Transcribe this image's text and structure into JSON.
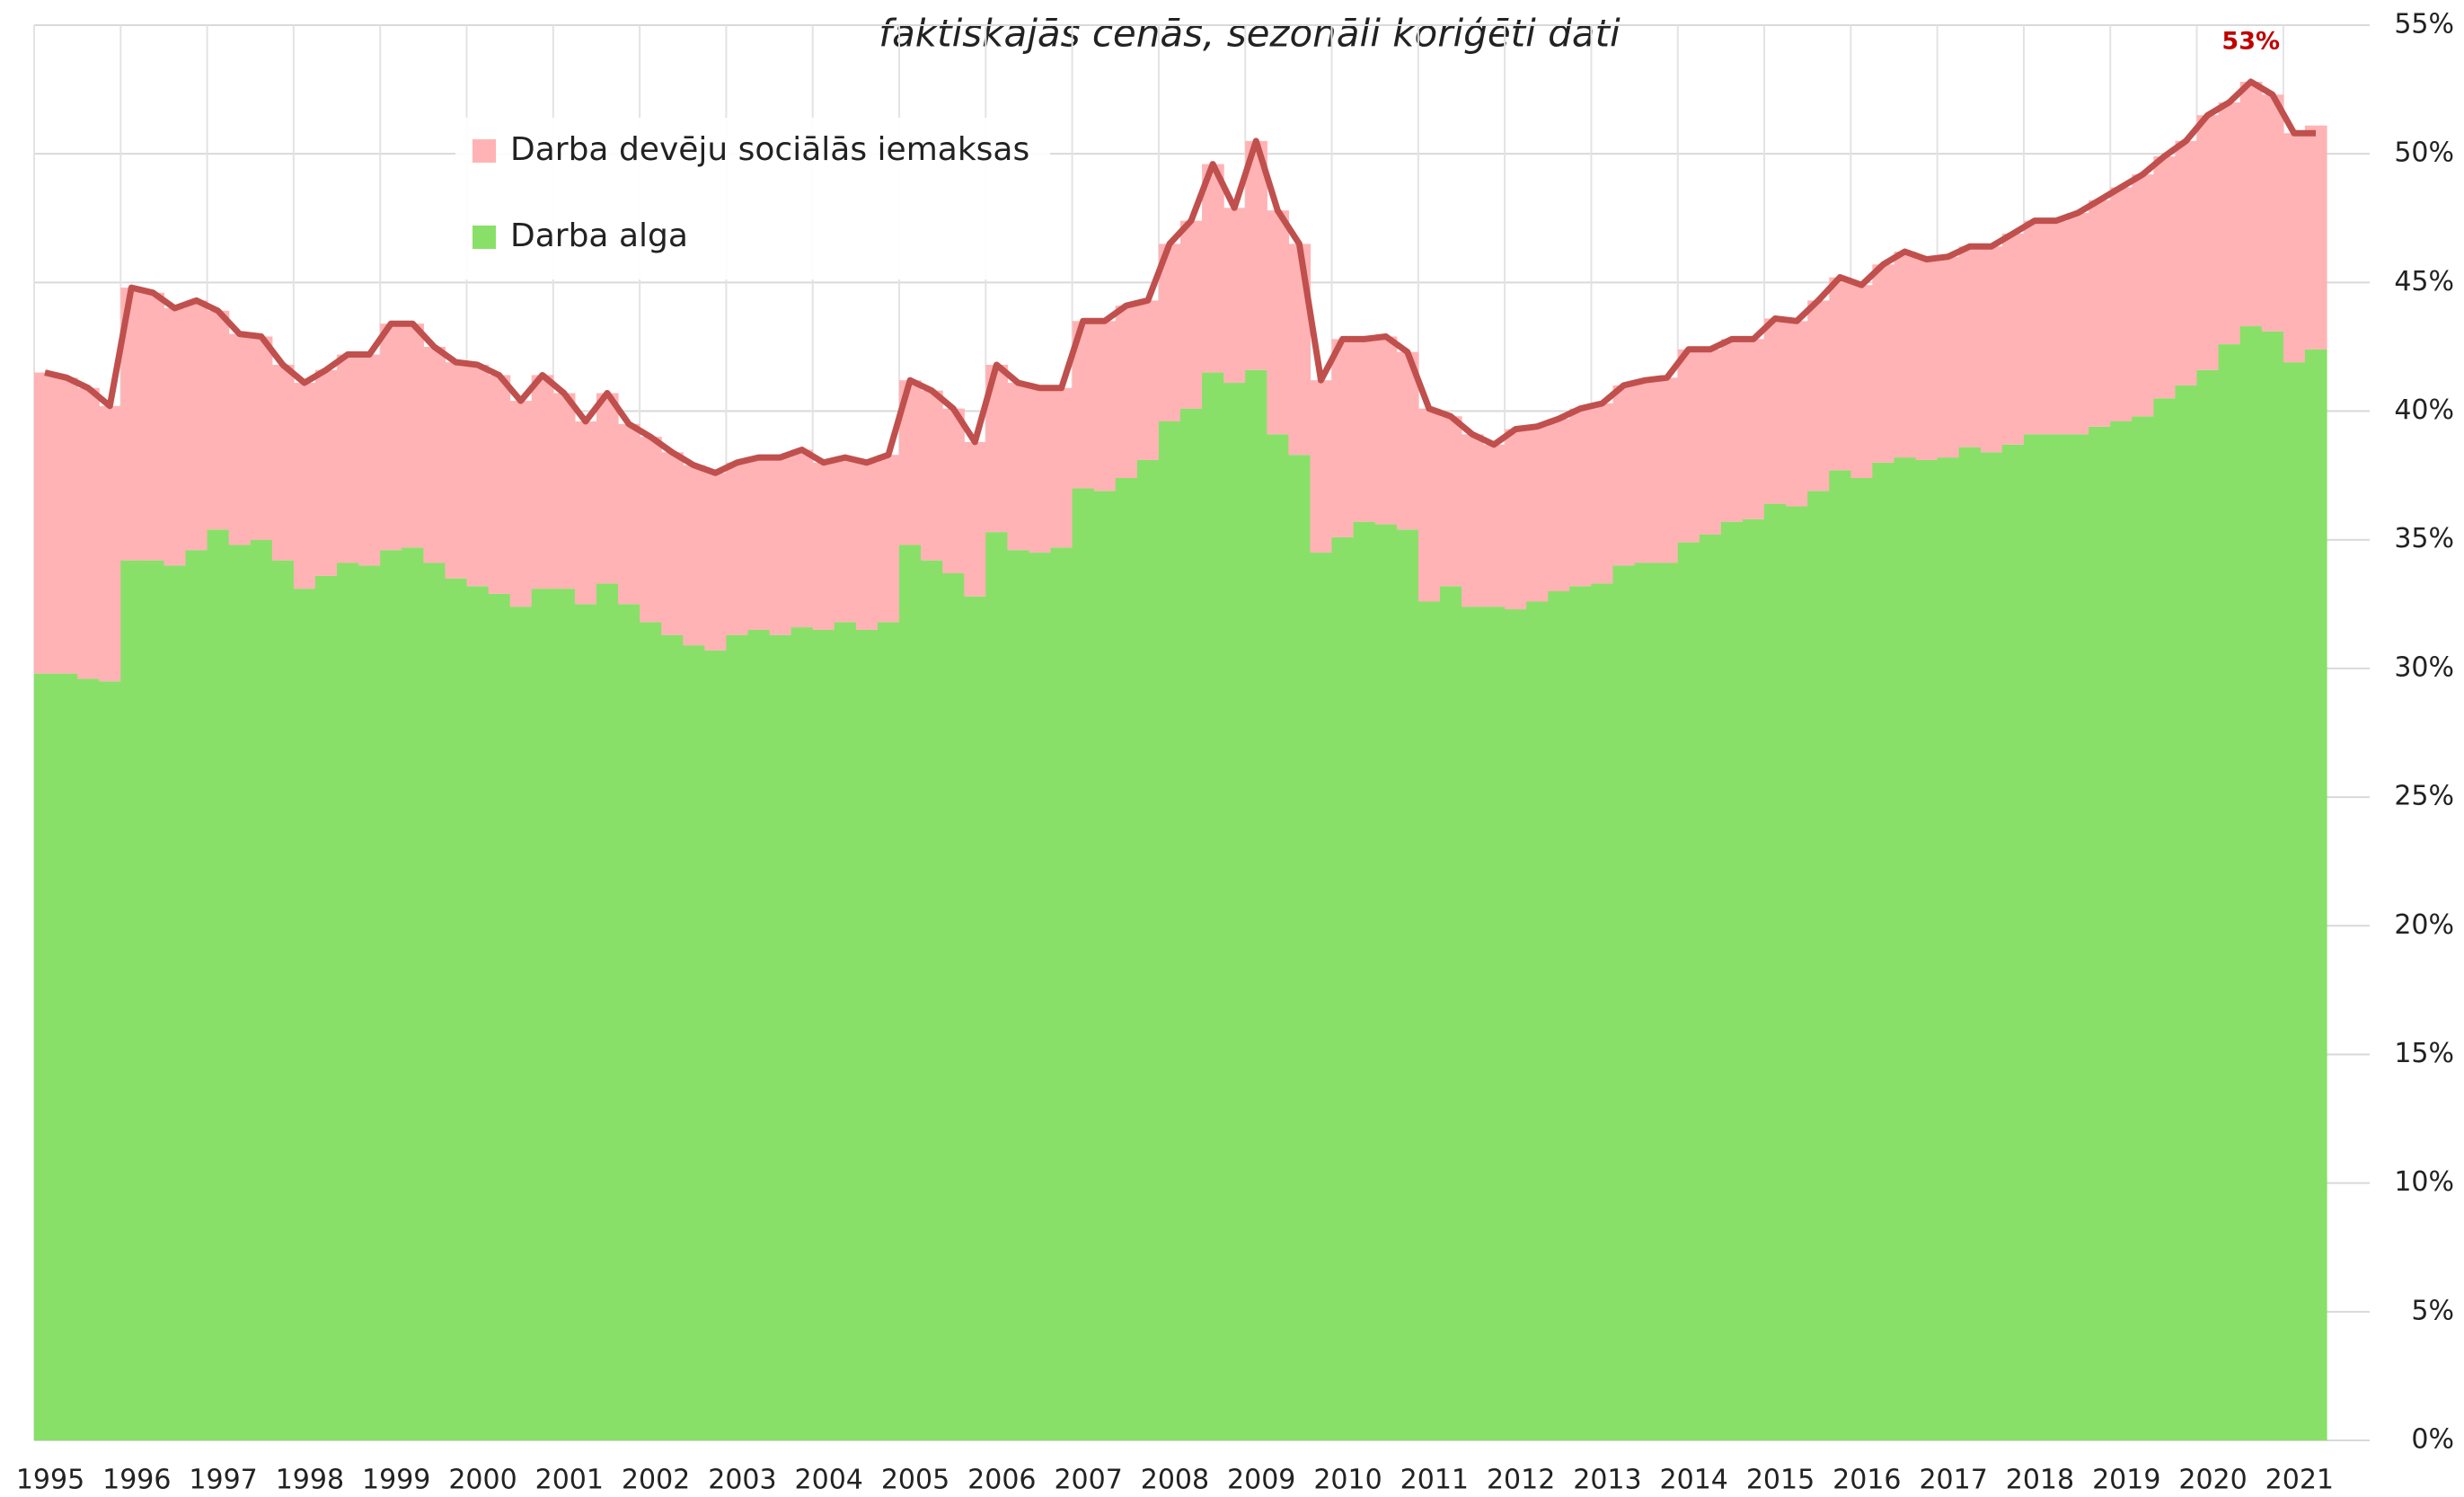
{
  "chart_data": {
    "type": "stacked_bar",
    "subtitle": "faktiskajās cenās, sezonāli koriģēti dati",
    "categories": [
      "1995",
      null,
      null,
      null,
      "1996",
      null,
      null,
      null,
      "1997",
      null,
      null,
      null,
      "1998",
      null,
      null,
      null,
      "1999",
      null,
      null,
      null,
      "2000",
      null,
      null,
      null,
      "2001",
      null,
      null,
      null,
      "2002",
      null,
      null,
      null,
      "2003",
      null,
      null,
      null,
      "2004",
      null,
      null,
      null,
      "2005",
      null,
      null,
      null,
      "2006",
      null,
      null,
      null,
      "2007",
      null,
      null,
      null,
      "2008",
      null,
      null,
      null,
      "2009",
      null,
      null,
      null,
      "2010",
      null,
      null,
      null,
      "2011",
      null,
      null,
      null,
      "2012",
      null,
      null,
      null,
      "2013",
      null,
      null,
      null,
      "2014",
      null,
      null,
      null,
      "2015",
      null,
      null,
      null,
      "2016",
      null,
      null,
      null,
      "2017",
      null,
      null,
      null,
      "2018",
      null,
      null,
      null,
      "2019",
      null,
      null,
      null,
      "2020",
      null,
      null,
      null,
      "2021",
      null
    ],
    "series": [
      {
        "name": "Darba alga",
        "color": "#88e068",
        "values": [
          29.8,
          29.8,
          29.6,
          29.5,
          34.2,
          34.2,
          34.0,
          34.6,
          35.4,
          34.8,
          35.0,
          34.2,
          33.1,
          33.6,
          34.1,
          34.0,
          34.6,
          34.7,
          34.1,
          33.5,
          33.2,
          32.9,
          32.4,
          33.1,
          33.1,
          32.5,
          33.3,
          32.5,
          31.8,
          31.3,
          30.9,
          30.7,
          31.3,
          31.5,
          31.3,
          31.6,
          31.5,
          31.8,
          31.5,
          31.8,
          34.8,
          34.2,
          33.7,
          32.8,
          35.3,
          34.6,
          34.5,
          34.7,
          37.0,
          36.9,
          37.4,
          38.1,
          39.6,
          40.1,
          41.5,
          41.1,
          41.6,
          39.1,
          38.3,
          34.5,
          35.1,
          35.7,
          35.6,
          35.4,
          32.6,
          33.2,
          32.4,
          32.4,
          32.3,
          32.6,
          33.0,
          33.2,
          33.3,
          34.0,
          34.1,
          34.1,
          34.9,
          35.2,
          35.7,
          35.8,
          36.4,
          36.3,
          36.9,
          37.7,
          37.4,
          38.0,
          38.2,
          38.1,
          38.2,
          38.6,
          38.4,
          38.7,
          39.1,
          39.1,
          39.1,
          39.4,
          39.6,
          39.8,
          40.5,
          41.0,
          41.6,
          42.6,
          43.3,
          43.1,
          41.9,
          42.4
        ]
      },
      {
        "name": "Darba devēju sociālās iemaksas",
        "color": "#ffb3b5",
        "values": [
          11.7,
          11.5,
          11.3,
          10.7,
          10.6,
          10.4,
          10.0,
          9.7,
          8.5,
          8.2,
          7.9,
          7.6,
          8.0,
          8.0,
          8.1,
          8.2,
          8.8,
          8.7,
          8.4,
          8.4,
          8.6,
          8.5,
          8.0,
          8.3,
          7.6,
          7.1,
          7.4,
          7.0,
          7.2,
          7.1,
          7.0,
          6.9,
          6.7,
          6.7,
          6.9,
          6.9,
          6.5,
          6.4,
          6.5,
          6.5,
          6.4,
          6.6,
          6.4,
          6.0,
          6.5,
          6.5,
          6.4,
          6.2,
          6.5,
          6.6,
          6.7,
          6.2,
          6.9,
          7.3,
          8.1,
          6.8,
          8.9,
          8.7,
          8.2,
          6.7,
          7.7,
          7.1,
          7.3,
          6.9,
          7.5,
          6.6,
          6.7,
          6.3,
          7.0,
          6.8,
          6.7,
          6.9,
          7.0,
          7.0,
          7.1,
          7.2,
          7.5,
          7.2,
          7.1,
          7.0,
          7.2,
          7.2,
          7.4,
          7.5,
          7.5,
          7.7,
          8.0,
          7.8,
          7.8,
          7.8,
          8.0,
          8.2,
          8.3,
          8.3,
          8.6,
          8.8,
          9.1,
          9.4,
          9.4,
          9.5,
          9.9,
          9.4,
          9.5,
          9.2,
          8.9,
          8.7
        ]
      }
    ],
    "line": {
      "color": "#c0504d",
      "values": [
        41.5,
        41.3,
        40.9,
        40.2,
        44.8,
        44.6,
        44.0,
        44.3,
        43.9,
        43.0,
        42.9,
        41.8,
        41.1,
        41.6,
        42.2,
        42.2,
        43.4,
        43.4,
        42.5,
        41.9,
        41.8,
        41.4,
        40.4,
        41.4,
        40.7,
        39.6,
        40.7,
        39.5,
        39.0,
        38.4,
        37.9,
        37.6,
        38.0,
        38.2,
        38.2,
        38.5,
        38.0,
        38.2,
        38.0,
        38.3,
        41.2,
        40.8,
        40.1,
        38.8,
        41.8,
        41.1,
        40.9,
        40.9,
        43.5,
        43.5,
        44.1,
        44.3,
        46.5,
        47.4,
        49.6,
        47.9,
        50.5,
        47.8,
        46.5,
        41.2,
        42.8,
        42.8,
        42.9,
        42.3,
        40.1,
        39.8,
        39.1,
        38.7,
        39.3,
        39.4,
        39.7,
        40.1,
        40.3,
        41.0,
        41.2,
        41.3,
        42.4,
        42.4,
        42.8,
        42.8,
        43.6,
        43.5,
        44.3,
        45.2,
        44.9,
        45.7,
        46.2,
        45.9,
        46.0,
        46.4,
        46.4,
        46.9,
        47.4,
        47.4,
        47.7,
        48.2,
        48.7,
        49.2,
        49.9,
        50.5,
        51.5,
        52.0,
        52.8,
        52.3,
        50.8,
        50.8
      ],
      "value_labels": [
        null,
        null,
        null,
        null,
        null,
        null,
        null,
        null,
        null,
        null,
        null,
        null,
        null,
        null,
        null,
        null,
        null,
        null,
        null,
        null,
        null,
        null,
        null,
        null,
        null,
        null,
        null,
        null,
        null,
        null,
        null,
        null,
        null,
        null,
        null,
        null,
        null,
        null,
        null,
        null,
        null,
        null,
        null,
        null,
        null,
        null,
        null,
        null,
        null,
        null,
        null,
        null,
        null,
        null,
        null,
        null,
        null,
        null,
        null,
        null,
        null,
        null,
        null,
        null,
        null,
        null,
        null,
        null,
        null,
        null,
        null,
        null,
        null,
        null,
        null,
        null,
        null,
        null,
        null,
        null,
        null,
        null,
        null,
        null,
        null,
        null,
        null,
        null,
        null,
        null,
        null,
        null,
        null,
        null,
        null,
        null,
        null,
        null,
        null,
        null,
        null,
        null,
        "53%",
        null,
        null,
        null
      ]
    },
    "ylim": [
      0,
      55
    ],
    "yticks": [
      {
        "value": 0,
        "label": "0%"
      },
      {
        "value": 5,
        "label": "5%"
      },
      {
        "value": 10,
        "label": "10%"
      },
      {
        "value": 15,
        "label": "15%"
      },
      {
        "value": 20,
        "label": "20%"
      },
      {
        "value": 25,
        "label": "25%"
      },
      {
        "value": 30,
        "label": "30%"
      },
      {
        "value": 35,
        "label": "35%"
      },
      {
        "value": 40,
        "label": "40%"
      },
      {
        "value": 45,
        "label": "45%"
      },
      {
        "value": 50,
        "label": "50%"
      },
      {
        "value": 55,
        "label": "55%"
      }
    ],
    "grid": true,
    "legend": "upper left"
  }
}
